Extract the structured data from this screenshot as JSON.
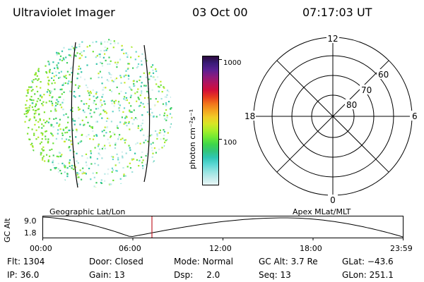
{
  "header": {
    "title": "Ultraviolet Imager",
    "date": "03 Oct 00",
    "time": "07:17:03 UT"
  },
  "colorbar": {
    "label": "photon cm⁻²s⁻¹",
    "ticks": [
      "1000",
      "100"
    ],
    "colors": [
      "#2b0a3d",
      "#3a1b78",
      "#5a1f92",
      "#8c1a7c",
      "#b3145c",
      "#d20f3a",
      "#e63a1e",
      "#f1741b",
      "#f3a21f",
      "#f0cc27",
      "#d6e626",
      "#a6ee2a",
      "#6fe934",
      "#3fd64a",
      "#32c57a",
      "#2fc6b4",
      "#5bd7d4",
      "#93e3e1",
      "#c2ecec",
      "#e8f6f6"
    ]
  },
  "polar": {
    "mlt_labels": {
      "top": "12",
      "bottom": "0",
      "left": "18",
      "right": "6"
    },
    "lat_labels": [
      "60",
      "70",
      "80"
    ]
  },
  "timeline": {
    "left_label": "Geographic Lat/Lon",
    "right_label": "Apex MLat/MLT",
    "y_axis_title": "GC Alt",
    "y_ticks": [
      "9.0",
      "1.8"
    ],
    "x_ticks": [
      "00:00",
      "06:00",
      "12:00",
      "18:00",
      "23:59"
    ],
    "current_time_fraction": 0.304
  },
  "info": {
    "row1": {
      "flt": "Flt: 1304",
      "door": "Door: Closed",
      "mode": "Mode: Normal",
      "gc_alt": "GC Alt: 3.7 Re",
      "glat": "GLat: −43.6"
    },
    "row2": {
      "ip": "IP: 36.0",
      "gain": "Gain: 13",
      "dsp": "Dsp:     2.0",
      "seq": "Seq: 13",
      "glon": "GLon: 251.1"
    }
  }
}
